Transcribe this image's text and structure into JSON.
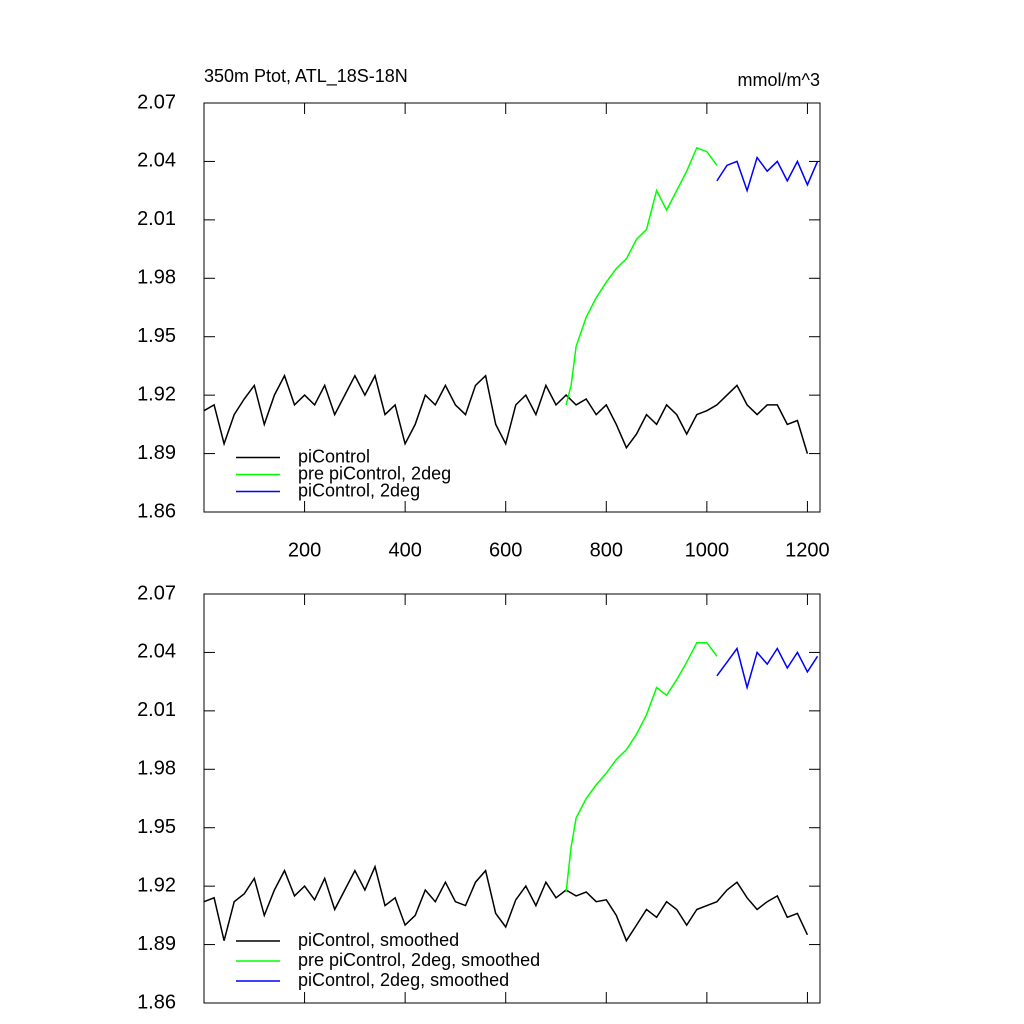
{
  "chart_data": [
    {
      "type": "line",
      "title": "350m Ptot, ATL_18S-18N",
      "subtitle": "mmol/m^3",
      "xlim": [
        0,
        1225
      ],
      "xticks": [
        200,
        400,
        600,
        800,
        1000,
        1200
      ],
      "xtick_labels": true,
      "ylim": [
        1.86,
        2.07
      ],
      "yticks": [
        1.86,
        1.89,
        1.92,
        1.95,
        1.98,
        2.01,
        2.04,
        2.07
      ],
      "legend": "lower left",
      "series": [
        {
          "name": "piControl",
          "color": "#000000",
          "x": [
            0,
            20,
            40,
            60,
            80,
            100,
            120,
            140,
            160,
            180,
            200,
            220,
            240,
            260,
            280,
            300,
            320,
            340,
            360,
            380,
            400,
            420,
            440,
            460,
            480,
            500,
            520,
            540,
            560,
            580,
            600,
            620,
            640,
            660,
            680,
            700,
            720,
            740,
            760,
            780,
            800,
            820,
            840,
            860,
            880,
            900,
            920,
            940,
            960,
            980,
            1000,
            1020,
            1040,
            1060,
            1080,
            1100,
            1120,
            1140,
            1160,
            1180,
            1200
          ],
          "values": [
            1.912,
            1.915,
            1.895,
            1.91,
            1.918,
            1.925,
            1.905,
            1.92,
            1.93,
            1.915,
            1.92,
            1.915,
            1.925,
            1.91,
            1.92,
            1.93,
            1.92,
            1.93,
            1.91,
            1.915,
            1.895,
            1.905,
            1.92,
            1.915,
            1.925,
            1.915,
            1.91,
            1.925,
            1.93,
            1.905,
            1.895,
            1.915,
            1.92,
            1.91,
            1.925,
            1.915,
            1.92,
            1.915,
            1.918,
            1.91,
            1.915,
            1.905,
            1.893,
            1.9,
            1.91,
            1.905,
            1.915,
            1.91,
            1.9,
            1.91,
            1.912,
            1.915,
            1.92,
            1.925,
            1.915,
            1.91,
            1.915,
            1.915,
            1.905,
            1.907,
            1.89
          ]
        },
        {
          "name": "pre piControl, 2deg",
          "color": "#00ff00",
          "x": [
            720,
            730,
            740,
            760,
            780,
            800,
            820,
            840,
            860,
            880,
            900,
            920,
            940,
            960,
            980,
            1000,
            1020
          ],
          "values": [
            1.915,
            1.925,
            1.945,
            1.96,
            1.97,
            1.978,
            1.985,
            1.99,
            2.0,
            2.005,
            2.025,
            2.015,
            2.025,
            2.035,
            2.047,
            2.045,
            2.038
          ]
        },
        {
          "name": "piControl, 2deg",
          "color": "#0000ff",
          "x": [
            1020,
            1040,
            1060,
            1080,
            1100,
            1120,
            1140,
            1160,
            1180,
            1200,
            1220
          ],
          "values": [
            2.03,
            2.038,
            2.04,
            2.025,
            2.042,
            2.035,
            2.04,
            2.03,
            2.04,
            2.028,
            2.04
          ]
        }
      ]
    },
    {
      "type": "line",
      "xlim": [
        0,
        1225
      ],
      "xticks": [
        200,
        400,
        600,
        800,
        1000,
        1200
      ],
      "xtick_labels": false,
      "ylim": [
        1.86,
        2.07
      ],
      "yticks": [
        1.86,
        1.89,
        1.92,
        1.95,
        1.98,
        2.01,
        2.04,
        2.07
      ],
      "legend": "lower left",
      "series": [
        {
          "name": "piControl, smoothed",
          "color": "#000000",
          "x": [
            0,
            20,
            40,
            60,
            80,
            100,
            120,
            140,
            160,
            180,
            200,
            220,
            240,
            260,
            280,
            300,
            320,
            340,
            360,
            380,
            400,
            420,
            440,
            460,
            480,
            500,
            520,
            540,
            560,
            580,
            600,
            620,
            640,
            660,
            680,
            700,
            720,
            740,
            760,
            780,
            800,
            820,
            840,
            860,
            880,
            900,
            920,
            940,
            960,
            980,
            1000,
            1020,
            1040,
            1060,
            1080,
            1100,
            1120,
            1140,
            1160,
            1180,
            1200
          ],
          "values": [
            1.912,
            1.914,
            1.892,
            1.912,
            1.916,
            1.924,
            1.905,
            1.918,
            1.928,
            1.915,
            1.92,
            1.913,
            1.924,
            1.908,
            1.918,
            1.928,
            1.918,
            1.93,
            1.91,
            1.914,
            1.9,
            1.905,
            1.918,
            1.912,
            1.922,
            1.912,
            1.91,
            1.922,
            1.928,
            1.906,
            1.899,
            1.913,
            1.92,
            1.91,
            1.922,
            1.914,
            1.918,
            1.915,
            1.917,
            1.912,
            1.913,
            1.905,
            1.892,
            1.9,
            1.908,
            1.904,
            1.912,
            1.908,
            1.9,
            1.908,
            1.91,
            1.912,
            1.918,
            1.922,
            1.914,
            1.908,
            1.912,
            1.915,
            1.904,
            1.906,
            1.895
          ]
        },
        {
          "name": "pre piControl, 2deg, smoothed",
          "color": "#00ff00",
          "x": [
            720,
            730,
            740,
            760,
            780,
            800,
            820,
            840,
            860,
            880,
            900,
            920,
            940,
            960,
            980,
            1000,
            1020
          ],
          "values": [
            1.917,
            1.94,
            1.955,
            1.965,
            1.972,
            1.978,
            1.985,
            1.99,
            1.998,
            2.008,
            2.022,
            2.018,
            2.026,
            2.035,
            2.045,
            2.045,
            2.038
          ]
        },
        {
          "name": "piControl, 2deg, smoothed",
          "color": "#0000ff",
          "x": [
            1020,
            1040,
            1060,
            1080,
            1100,
            1120,
            1140,
            1160,
            1180,
            1200,
            1220
          ],
          "values": [
            2.028,
            2.035,
            2.042,
            2.022,
            2.04,
            2.034,
            2.042,
            2.032,
            2.04,
            2.03,
            2.038
          ]
        }
      ]
    }
  ]
}
